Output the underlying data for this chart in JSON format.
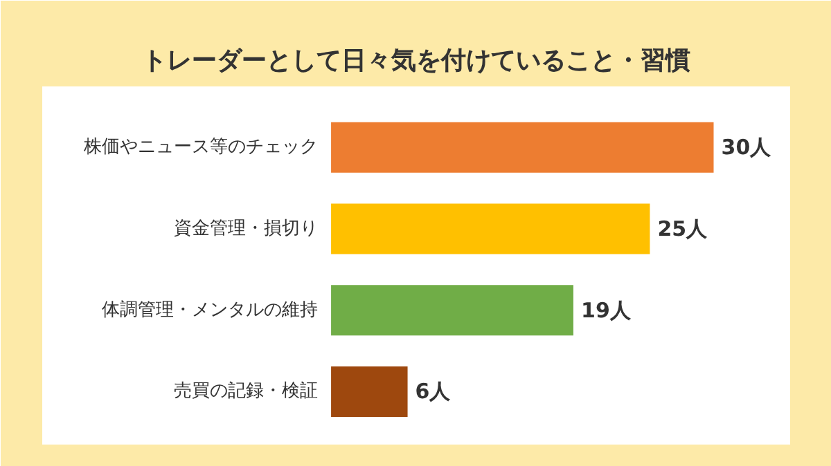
{
  "chart_data": {
    "type": "bar",
    "orientation": "horizontal",
    "title": "トレーダーとして日々気を付けていること・習慣",
    "categories": [
      "株価やニュース等のチェック",
      "資金管理・損切り",
      "体調管理・メンタルの維持",
      "売買の記録・検証"
    ],
    "values": [
      30,
      25,
      19,
      6
    ],
    "colors": [
      "#ed7d31",
      "#ffc000",
      "#70ad47",
      "#9e480e"
    ],
    "value_labels": [
      "30人",
      "25人",
      "19人",
      "6人"
    ],
    "grid": false
  }
}
